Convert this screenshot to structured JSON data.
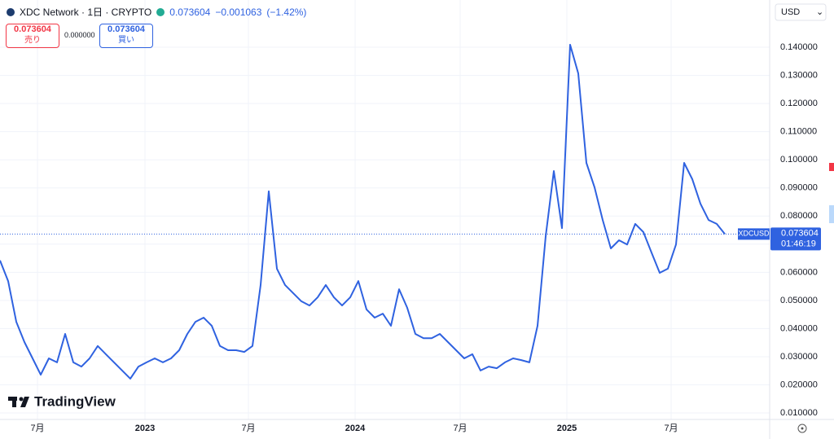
{
  "header": {
    "title": "XDC Network · 1日 · CRYPTO",
    "price": "0.073604",
    "change": "−0.001063",
    "change_pct": "(−1.42%)",
    "sell_price": "0.073604",
    "sell_label": "売り",
    "spread": "0.000000",
    "buy_price": "0.073604",
    "buy_label": "買い",
    "currency": "USD",
    "logo": "TradingView",
    "countdown": "01:46:19"
  },
  "chart_data": {
    "type": "line",
    "series": [
      {
        "name": "XDCUSD",
        "color": "#2f62e0",
        "values": [
          0.0642,
          0.0569,
          0.0424,
          0.0352,
          0.0294,
          0.0236,
          0.0294,
          0.028,
          0.0381,
          0.028,
          0.0265,
          0.0294,
          0.0338,
          0.0309,
          0.028,
          0.0251,
          0.0222,
          0.0265,
          0.028,
          0.0294,
          0.028,
          0.0294,
          0.0323,
          0.0381,
          0.0424,
          0.0439,
          0.041,
          0.0338,
          0.0323,
          0.0323,
          0.0317,
          0.0338,
          0.0555,
          0.0888,
          0.0613,
          0.0555,
          0.0526,
          0.0497,
          0.0482,
          0.0511,
          0.0555,
          0.0511,
          0.0482,
          0.0511,
          0.0569,
          0.0468,
          0.0439,
          0.0453,
          0.041,
          0.054,
          0.0474,
          0.0381,
          0.0366,
          0.0366,
          0.0381,
          0.0352,
          0.0323,
          0.0294,
          0.0309,
          0.0251,
          0.0265,
          0.0259,
          0.028,
          0.0294,
          0.0288,
          0.028,
          0.041,
          0.0728,
          0.096,
          0.0757,
          0.1409,
          0.1307,
          0.0989,
          0.0902,
          0.0786,
          0.0685,
          0.0714,
          0.0699,
          0.0772,
          0.0743,
          0.067,
          0.0598,
          0.0613,
          0.0699,
          0.0989,
          0.0931,
          0.0844,
          0.0786,
          0.0772,
          0.073604
        ]
      }
    ],
    "last_value_label": "0.073604",
    "xlim": [
      0,
      94.5
    ],
    "xticks": [
      {
        "value": 4.6,
        "label": "7月"
      },
      {
        "value": 17.8,
        "label": "2023"
      },
      {
        "value": 30.5,
        "label": "7月"
      },
      {
        "value": 43.6,
        "label": "2024"
      },
      {
        "value": 56.5,
        "label": "7月"
      },
      {
        "value": 69.6,
        "label": "2025"
      },
      {
        "value": 82.4,
        "label": "7月"
      }
    ],
    "ylim": [
      0.0077,
      0.1568
    ],
    "yticks": [
      {
        "value": 0.01,
        "label": "0.010000"
      },
      {
        "value": 0.02,
        "label": "0.020000"
      },
      {
        "value": 0.03,
        "label": "0.030000"
      },
      {
        "value": 0.04,
        "label": "0.040000"
      },
      {
        "value": 0.05,
        "label": "0.050000"
      },
      {
        "value": 0.06,
        "label": "0.060000"
      },
      {
        "value": 0.07,
        "label": "0.070000"
      },
      {
        "value": 0.08,
        "label": "0.080000"
      },
      {
        "value": 0.09,
        "label": "0.090000"
      },
      {
        "value": 0.1,
        "label": "0.100000"
      },
      {
        "value": 0.11,
        "label": "0.110000"
      },
      {
        "value": 0.12,
        "label": "0.120000"
      },
      {
        "value": 0.13,
        "label": "0.130000"
      },
      {
        "value": 0.14,
        "label": "0.140000"
      }
    ],
    "grid": true
  }
}
